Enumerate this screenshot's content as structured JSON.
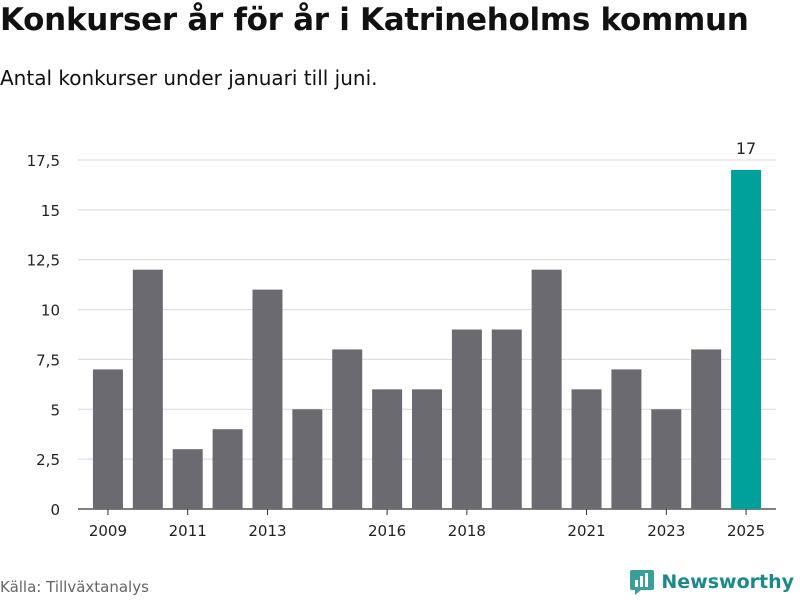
{
  "header": {
    "title": "Konkurser år för år i Katrineholms kommun",
    "subtitle": "Antal konkurser under januari till juni."
  },
  "footer": {
    "source": "Källa: Tillväxtanalys",
    "brand": "Newsworthy",
    "brand_icon": "newsworthy-logo-icon"
  },
  "colors": {
    "bar": "#6b6a70",
    "highlight": "#00a19a",
    "grid": "#d9d9d9",
    "axis": "#333333",
    "brand": "#1a8a8c"
  },
  "chart_data": {
    "type": "bar",
    "categories": [
      "2009",
      "2010",
      "2011",
      "2012",
      "2013",
      "2014",
      "2015",
      "2016",
      "2017",
      "2018",
      "2019",
      "2020",
      "2021",
      "2022",
      "2023",
      "2024",
      "2025"
    ],
    "values": [
      7,
      12,
      3,
      4,
      11,
      5,
      8,
      6,
      6,
      9,
      9,
      12,
      6,
      7,
      5,
      8,
      17
    ],
    "highlight_index": 16,
    "data_labels": [
      {
        "index": 16,
        "text": "17"
      }
    ],
    "x_tick_labels": [
      "2009",
      "2011",
      "2013",
      "2016",
      "2018",
      "2021",
      "2023",
      "2025"
    ],
    "y_ticks": [
      0,
      2.5,
      5,
      7.5,
      10,
      12.5,
      15,
      17.5
    ],
    "y_tick_labels": [
      "0",
      "2,5",
      "5",
      "7,5",
      "10",
      "12,5",
      "15",
      "17,5"
    ],
    "ylim": [
      0,
      17.5
    ],
    "grid": true,
    "legend": "none"
  }
}
